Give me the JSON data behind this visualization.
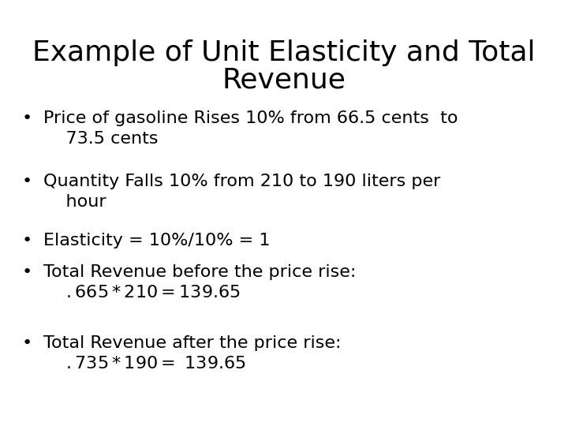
{
  "title_line1": "Example of Unit Elasticity and Total",
  "title_line2": "Revenue",
  "title_fontsize": 26,
  "body_fontsize": 16,
  "font_family": "DejaVu Sans",
  "background_color": "#ffffff",
  "text_color": "#000000",
  "bullet_char": "•",
  "title_weight": "normal",
  "bullet_lines": [
    [
      "Price of gasoline Rises 10% from 66.5 cents  to",
      "    73.5 cents"
    ],
    [
      "Quantity Falls 10% from 210 to 190 liters per",
      "    hour"
    ],
    [
      "Elasticity = 10%/10% = 1"
    ],
    [
      "Total Revenue before the price rise:",
      "    $.665 * 210 =  $139.65"
    ],
    [
      "Total Revenue after the price rise:",
      "    $.735 * 190 =  $ 139.65"
    ]
  ]
}
